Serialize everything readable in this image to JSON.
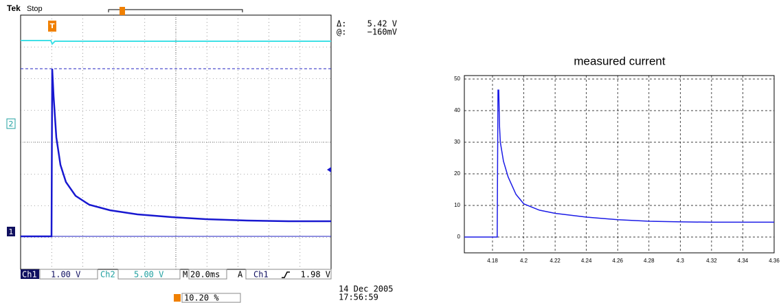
{
  "scope": {
    "brand": "Tek",
    "status": "Stop",
    "trigger_marker": "T",
    "cursor": {
      "delta_label": "Δ:",
      "delta_value": "5.42 V",
      "at_label": "@:",
      "at_value": "−160mV"
    },
    "channel_markers": [
      "2",
      "1"
    ],
    "bottom_bar": {
      "ch1": "Ch1",
      "ch1_scale": "1.00 V",
      "ch2": "Ch2",
      "ch2_scale": "5.00 V",
      "time_label": "M",
      "time_scale": "20.0ms",
      "trigger_label": "A",
      "trigger_source": "Ch1",
      "trigger_level": "1.98 V"
    },
    "trigger_position": "10.20 %",
    "date": "14 Dec 2005",
    "time": "17:56:59"
  },
  "chart_data": {
    "type": "line",
    "title": "measured current",
    "x": [
      4.162,
      4.183,
      4.1835,
      4.184,
      4.1845,
      4.185,
      4.187,
      4.19,
      4.195,
      4.2,
      4.21,
      4.22,
      4.24,
      4.26,
      4.28,
      4.3,
      4.32,
      4.34,
      4.36
    ],
    "series": [
      {
        "name": "measured current",
        "color": "#1a1ae6",
        "values": [
          0,
          0,
          46.5,
          46.5,
          35,
          30,
          24,
          19,
          13.5,
          10.5,
          8.5,
          7.5,
          6.3,
          5.5,
          5,
          4.8,
          4.7,
          4.7,
          4.7
        ]
      }
    ],
    "xlim": [
      4.162,
      4.36
    ],
    "xticks": [
      4.18,
      4.2,
      4.22,
      4.24,
      4.26,
      4.28,
      4.3,
      4.32,
      4.34,
      4.36
    ],
    "ylim": [
      -5,
      50
    ],
    "yticks": [
      0,
      10,
      20,
      30,
      40,
      50
    ],
    "grid": true
  }
}
